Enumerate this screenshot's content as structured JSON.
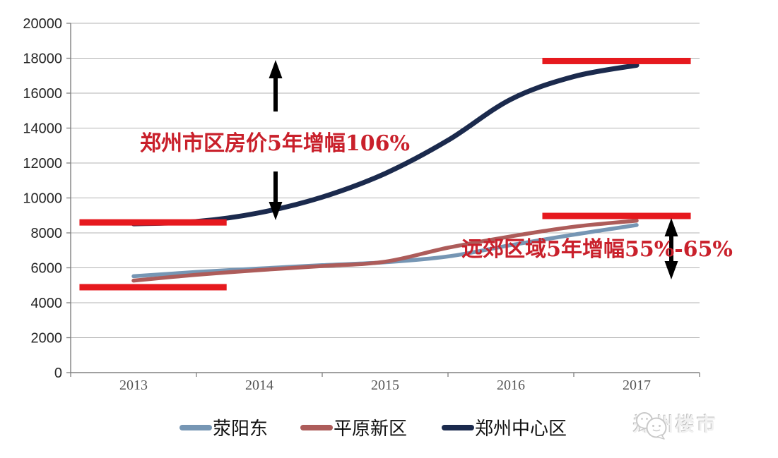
{
  "chart_data": {
    "type": "line",
    "title": "",
    "xlabel": "",
    "ylabel": "",
    "xlim": [
      2012.5,
      2017.5
    ],
    "ylim": [
      0,
      20000
    ],
    "y_tick_step": 2000,
    "grid": true,
    "legend_position": "bottom",
    "x": [
      2013,
      2013.5,
      2014,
      2014.5,
      2015,
      2015.5,
      2016,
      2016.5,
      2017
    ],
    "x_tick_labels": [
      "2013",
      "2014",
      "2015",
      "2016",
      "2017"
    ],
    "series": [
      {
        "name": "荥阳东",
        "color": "#7696b4",
        "width": 5.5,
        "values": [
          5520,
          5760,
          5960,
          6150,
          6320,
          6650,
          7300,
          7900,
          8450
        ]
      },
      {
        "name": "平原新区",
        "color": "#ad5c5a",
        "width": 5.5,
        "values": [
          5270,
          5600,
          5870,
          6100,
          6350,
          7150,
          7800,
          8350,
          8700
        ]
      },
      {
        "name": "郑州中心区",
        "color": "#1b2a4d",
        "width": 7,
        "values": [
          8520,
          8650,
          9150,
          10050,
          11400,
          13300,
          15650,
          16950,
          17600
        ]
      }
    ],
    "highlight_bars": [
      {
        "value": 8600,
        "x1": 2012.57,
        "x2": 2013.74,
        "color": "#e6191e"
      },
      {
        "value": 4890,
        "x1": 2012.57,
        "x2": 2013.74,
        "color": "#e6191e"
      },
      {
        "value": 17840,
        "x1": 2016.25,
        "x2": 2017.43,
        "color": "#e6191e"
      },
      {
        "value": 8970,
        "x1": 2016.25,
        "x2": 2017.43,
        "color": "#e6191e"
      }
    ],
    "annotations": [
      {
        "text": "郑州市区房价5年增幅106%",
        "color": "#c9202b"
      },
      {
        "text": "远郊区域5年增幅55%-65%",
        "color": "#c9202b"
      }
    ],
    "arrows": [
      {
        "shape": "arrow-up",
        "x": 390,
        "y_from": 158,
        "y_to": 85,
        "color": "#000000"
      },
      {
        "shape": "arrow-down",
        "x": 390,
        "y_from": 243,
        "y_to": 312,
        "color": "#000000"
      },
      {
        "shape": "arrow-double-vertical",
        "x": 950,
        "y_from": 309,
        "y_to": 396,
        "color": "#000000"
      }
    ]
  },
  "legend": {
    "items": [
      {
        "label": "荥阳东"
      },
      {
        "label": "平原新区"
      },
      {
        "label": "郑州中心区"
      }
    ]
  },
  "watermark": {
    "text": "郑州楼市",
    "icon": "wechat-bubbles-icon"
  }
}
